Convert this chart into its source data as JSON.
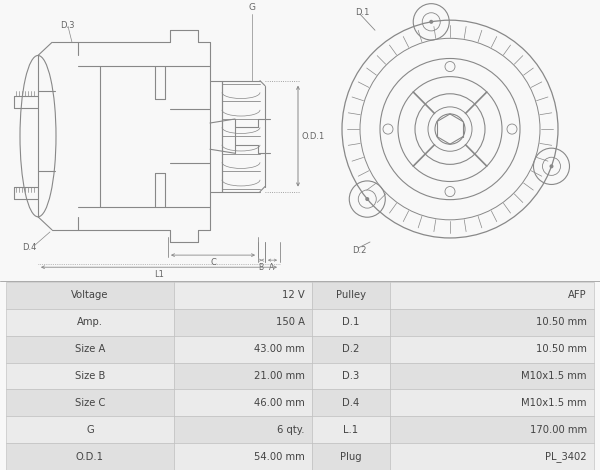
{
  "bg_color": "#f8f8f8",
  "table_bg_even": "#e8e8e8",
  "table_bg_odd": "#f2f2f2",
  "table_border": "#bbbbbb",
  "dc": "#888888",
  "lc": "#666666",
  "table_data": [
    [
      "Voltage",
      "12 V",
      "Pulley",
      "AFP"
    ],
    [
      "Amp.",
      "150 A",
      "D.1",
      "10.50 mm"
    ],
    [
      "Size A",
      "43.00 mm",
      "D.2",
      "10.50 mm"
    ],
    [
      "Size B",
      "21.00 mm",
      "D.3",
      "M10x1.5 mm"
    ],
    [
      "Size C",
      "46.00 mm",
      "D.4",
      "M10x1.5 mm"
    ],
    [
      "G",
      "6 qty.",
      "L.1",
      "170.00 mm"
    ],
    [
      "O.D.1",
      "54.00 mm",
      "Plug",
      "PL_3402"
    ]
  ],
  "fs_table": 7.2
}
